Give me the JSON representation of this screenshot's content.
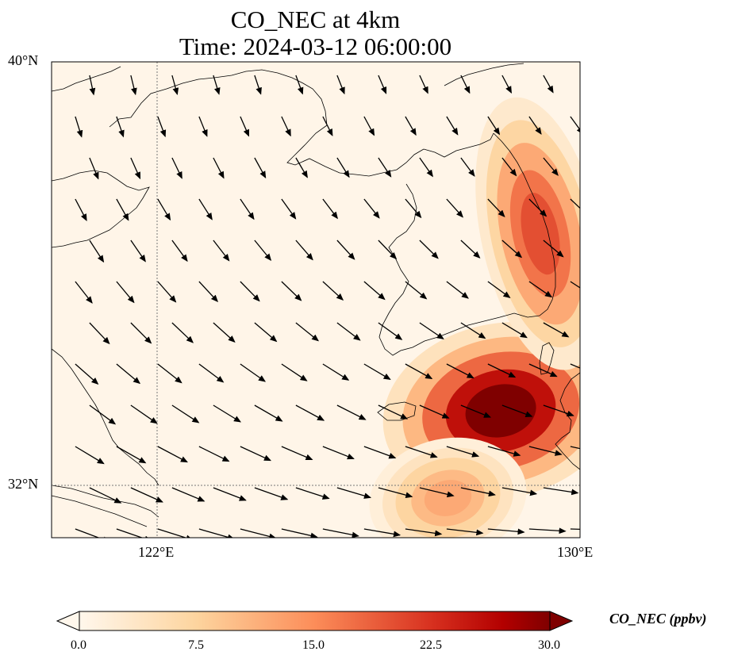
{
  "title_line1": "CO_NEC at 4km",
  "title_line2": "Time: 2024-03-12 06:00:00",
  "axes": {
    "lat_ticks": [
      "40°N",
      "32°N"
    ],
    "lon_ticks": [
      "122°E",
      "130°E"
    ],
    "extent": {
      "lon": [
        120,
        130
      ],
      "lat": [
        31,
        40
      ]
    }
  },
  "colorbar": {
    "label": "CO_NEC (ppbv)",
    "ticks": [
      "0.0",
      "7.5",
      "15.0",
      "22.5",
      "30.0"
    ],
    "range": [
      0,
      30
    ],
    "colormap": "OrRd",
    "extend": "both"
  },
  "colors": {
    "low": "#fff7ec",
    "mid": "#fc8d59",
    "high": "#7f0000",
    "coast": "#000000",
    "gridline": "#777777"
  },
  "chart_data": {
    "type": "heatmap",
    "variable": "CO_NEC",
    "units": "ppbv",
    "level": "4km",
    "time": "2024-03-12 06:00:00",
    "plumes": [
      {
        "region": "southern Korean Peninsula to Kyushu",
        "lon": [
          127,
          130
        ],
        "lat": [
          32.3,
          34.5
        ],
        "max_ppbv": 30
      },
      {
        "region": "east coast of Korea",
        "lon": [
          128.5,
          130
        ],
        "lat": [
          35,
          38.5
        ],
        "max_ppbv": 20
      },
      {
        "region": "south of Jeju",
        "lon": [
          126.5,
          128.5
        ],
        "lat": [
          31,
          32.5
        ],
        "max_ppbv": 12
      }
    ],
    "wind_field": "north-northwesterly over the Yellow Sea, turning westerly near Korea and Kyushu"
  }
}
